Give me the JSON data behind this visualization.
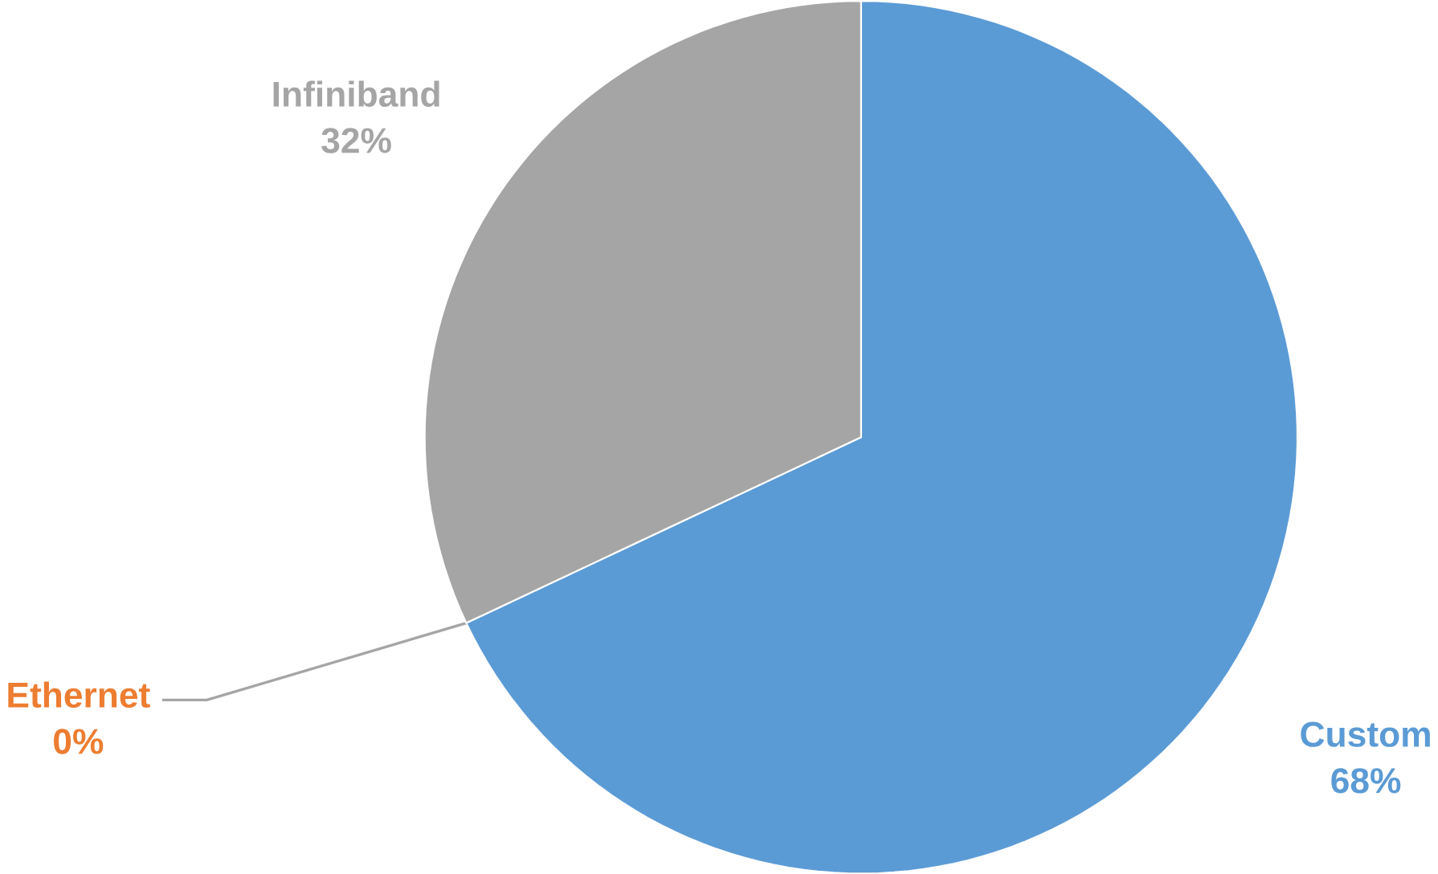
{
  "chart_data": {
    "type": "pie",
    "categories": [
      "Custom",
      "Ethernet",
      "Infiniband"
    ],
    "values": [
      68,
      0,
      32
    ],
    "value_labels": [
      "68%",
      "0%",
      "32%"
    ],
    "colors": [
      "#5b9bd5",
      "#ed7d31",
      "#a5a5a5"
    ]
  }
}
